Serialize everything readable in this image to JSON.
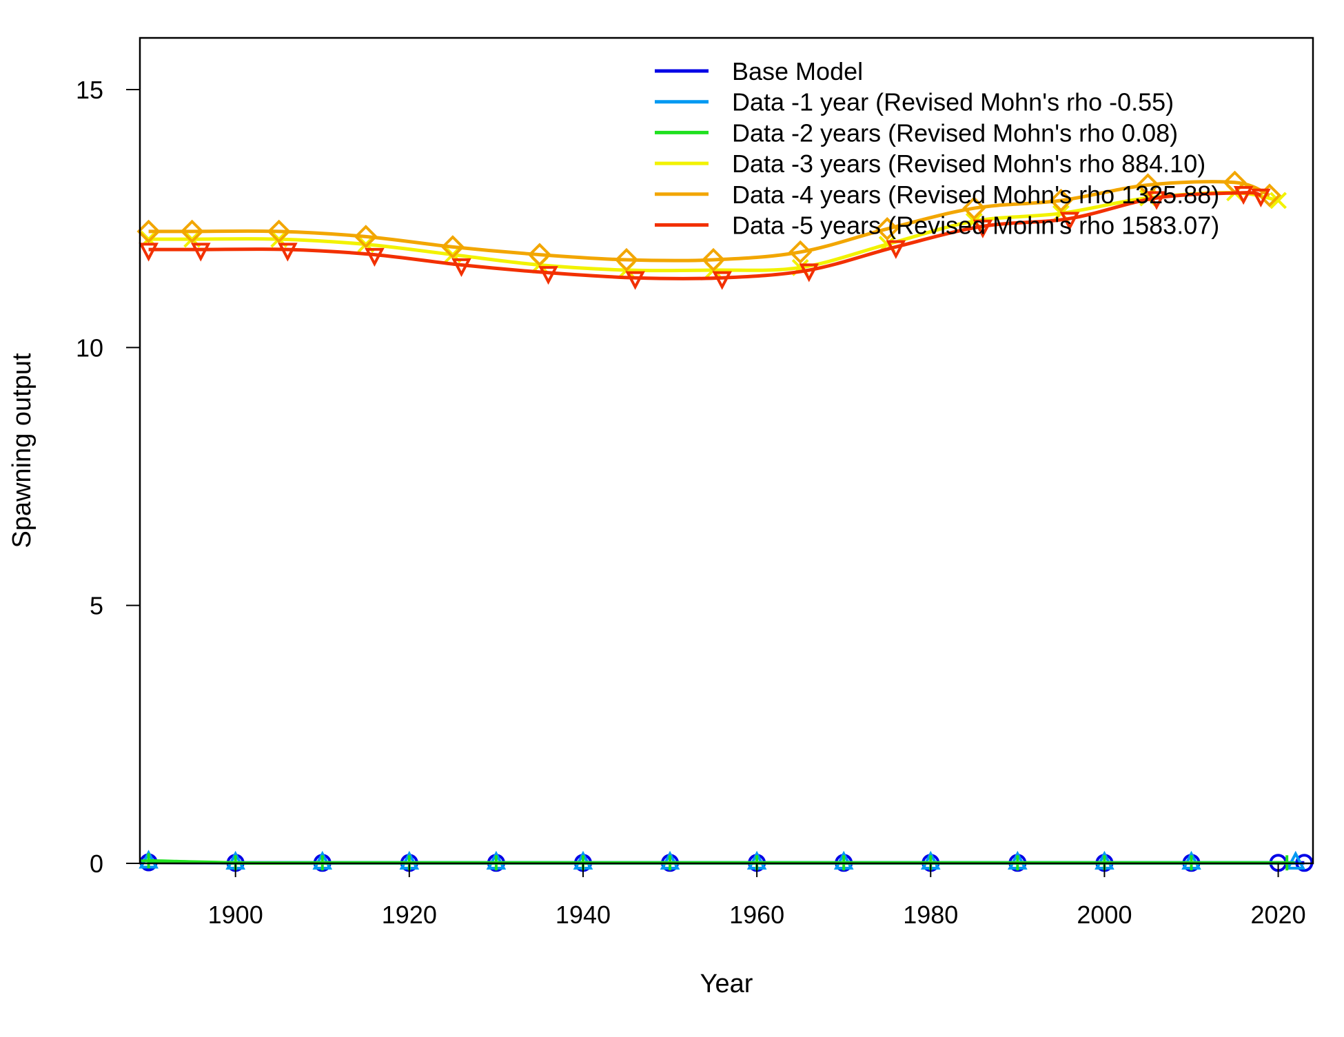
{
  "chart_data": {
    "type": "line",
    "xlabel": "Year",
    "ylabel": "Spawning output",
    "xlim": [
      1889,
      2024
    ],
    "ylim": [
      0,
      15
    ],
    "x_ticks": [
      1900,
      1920,
      1940,
      1960,
      1980,
      2000,
      2020
    ],
    "x_tick_labels": [
      "1900",
      "1920",
      "1940",
      "1960",
      "1980",
      "2000",
      "2020"
    ],
    "y_ticks": [
      0,
      5,
      10,
      15
    ],
    "y_tick_labels": [
      "0",
      "5",
      "10",
      "15"
    ],
    "grid": false,
    "legend_position": "top-right",
    "series": [
      {
        "name": "Base Model",
        "color": "#0000E6",
        "marker": "circle",
        "x": [
          1890,
          1900,
          1910,
          1920,
          1930,
          1940,
          1950,
          1960,
          1970,
          1980,
          1990,
          2000,
          2010,
          2020,
          2023
        ],
        "y": [
          0.02,
          0.01,
          0.01,
          0.01,
          0.01,
          0.01,
          0.01,
          0.01,
          0.01,
          0.01,
          0.01,
          0.01,
          0.01,
          0.01,
          0.01
        ]
      },
      {
        "name": "Data -1 year (Revised Mohn's rho -0.55)",
        "color": "#0099F2",
        "marker": "triangle-up",
        "x": [
          1890,
          1900,
          1910,
          1920,
          1930,
          1940,
          1950,
          1960,
          1970,
          1980,
          1990,
          2000,
          2010,
          2022
        ],
        "y": [
          0.03,
          0.01,
          0.01,
          0.01,
          0.01,
          0.01,
          0.01,
          0.01,
          0.01,
          0.01,
          0.01,
          0.01,
          0.01,
          0.01
        ]
      },
      {
        "name": "Data -2 years (Revised Mohn's rho 0.08)",
        "color": "#1FE01F",
        "marker": "plus",
        "x": [
          1890,
          1900,
          1910,
          1920,
          1930,
          1940,
          1950,
          1960,
          1970,
          1980,
          1990,
          2000,
          2010,
          2021
        ],
        "y": [
          0.05,
          0.01,
          0.01,
          0.01,
          0.01,
          0.01,
          0.01,
          0.01,
          0.01,
          0.01,
          0.01,
          0.01,
          0.01,
          0.01
        ]
      },
      {
        "name": "Data -3 years (Revised Mohn's rho 884.10)",
        "color": "#F2F200",
        "marker": "x",
        "x": [
          1890,
          1895,
          1905,
          1915,
          1925,
          1935,
          1945,
          1955,
          1965,
          1975,
          1985,
          1995,
          2005,
          2015,
          2020
        ],
        "y": [
          12.1,
          12.1,
          12.1,
          12.0,
          11.8,
          11.6,
          11.5,
          11.5,
          11.55,
          12.0,
          12.45,
          12.6,
          12.9,
          13.0,
          12.85
        ]
      },
      {
        "name": "Data -4 years (Revised Mohn's rho 1325.88)",
        "color": "#F2A600",
        "marker": "diamond",
        "x": [
          1890,
          1895,
          1905,
          1915,
          1925,
          1935,
          1945,
          1955,
          1965,
          1975,
          1985,
          1995,
          2005,
          2015,
          2019
        ],
        "y": [
          12.25,
          12.25,
          12.25,
          12.15,
          11.95,
          11.8,
          11.7,
          11.7,
          11.85,
          12.3,
          12.7,
          12.85,
          13.15,
          13.2,
          12.95
        ]
      },
      {
        "name": "Data -5 years (Revised Mohn's rho 1583.07)",
        "color": "#F23000",
        "marker": "triangle-down",
        "x": [
          1890,
          1896,
          1906,
          1916,
          1926,
          1936,
          1946,
          1956,
          1966,
          1976,
          1986,
          1996,
          2006,
          2016,
          2018
        ],
        "y": [
          11.9,
          11.9,
          11.9,
          11.8,
          11.6,
          11.45,
          11.35,
          11.35,
          11.5,
          11.95,
          12.35,
          12.5,
          12.9,
          13.0,
          12.95
        ]
      }
    ]
  }
}
